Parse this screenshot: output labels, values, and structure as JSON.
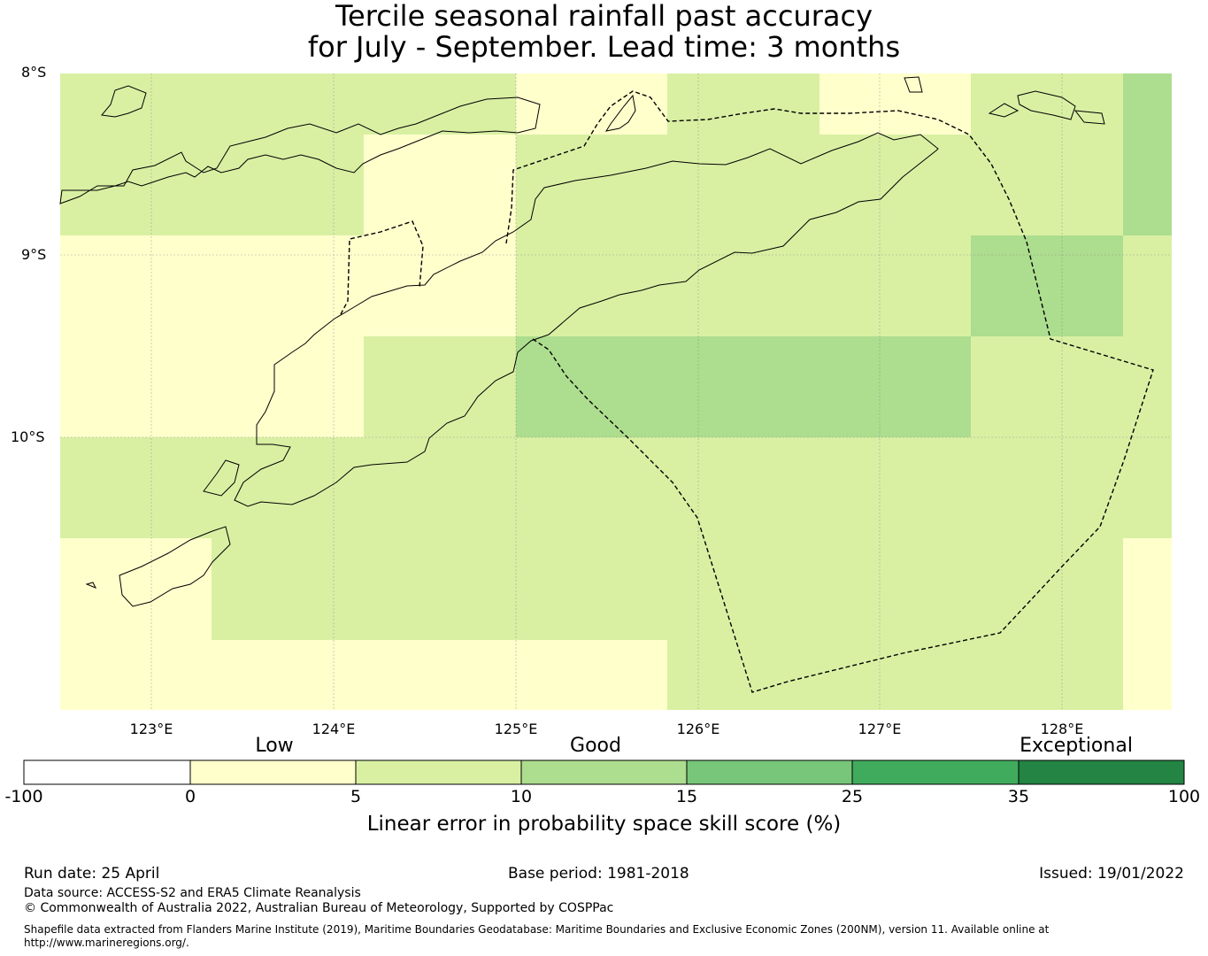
{
  "title_line1": "Tercile seasonal rainfall past accuracy",
  "title_line2": "for July - September. Lead time: 3 months",
  "map": {
    "lat_labels": [
      "8°S",
      "9°S",
      "10°S"
    ],
    "lon_labels": [
      "123°E",
      "124°E",
      "125°E",
      "126°E",
      "127°E",
      "128°E"
    ],
    "extent": {
      "lon_min": 122.5,
      "lon_max": 128.6,
      "lat_min": -10.5,
      "lat_max": -8.0
    },
    "grid_cells": [
      {
        "lon0": 122.5,
        "lon1": 125.0,
        "lat0": -8.0,
        "lat1": -8.85,
        "class": 2
      },
      {
        "lon0": 125.0,
        "lon1": 125.83,
        "lat0": -8.0,
        "lat1": -8.35,
        "class": 1
      },
      {
        "lon0": 125.83,
        "lon1": 126.67,
        "lat0": -8.0,
        "lat1": -8.35,
        "class": 2
      },
      {
        "lon0": 126.67,
        "lon1": 127.5,
        "lat0": -8.0,
        "lat1": -8.35,
        "class": 1
      },
      {
        "lon0": 127.5,
        "lon1": 128.33,
        "lat0": -8.0,
        "lat1": -8.35,
        "class": 2
      },
      {
        "lon0": 128.33,
        "lon1": 128.6,
        "lat0": -8.0,
        "lat1": -8.85,
        "class": 3
      }
    ]
  },
  "colorbar": {
    "categories": [
      "Low",
      "Good",
      "Exceptional"
    ],
    "ticks": [
      "-100",
      "0",
      "5",
      "10",
      "15",
      "25",
      "35",
      "100"
    ],
    "colors": [
      "#ffffff",
      "#ffffcc",
      "#d9f0a3",
      "#addd8e",
      "#78c679",
      "#41ab5d",
      "#238443"
    ],
    "label": "Linear error in probability space skill score (%)"
  },
  "footer": {
    "run_date": "Run date: 25 April",
    "base_period": "Base period: 1981-2018",
    "issued": "Issued: 19/01/2022",
    "data_source": "Data source: ACCESS-S2 and ERA5 Climate Reanalysis",
    "copyright": "© Commonwealth of Australia 2022, Australian Bureau of Meteorology, Supported by COSPPac",
    "shapefile": "Shapefile data extracted from Flanders Marine Institute (2019), Maritime Boundaries Geodatabase: Maritime Boundaries and Exclusive Economic Zones (200NM), version 11. Available online at http://www.marineregions.org/."
  }
}
